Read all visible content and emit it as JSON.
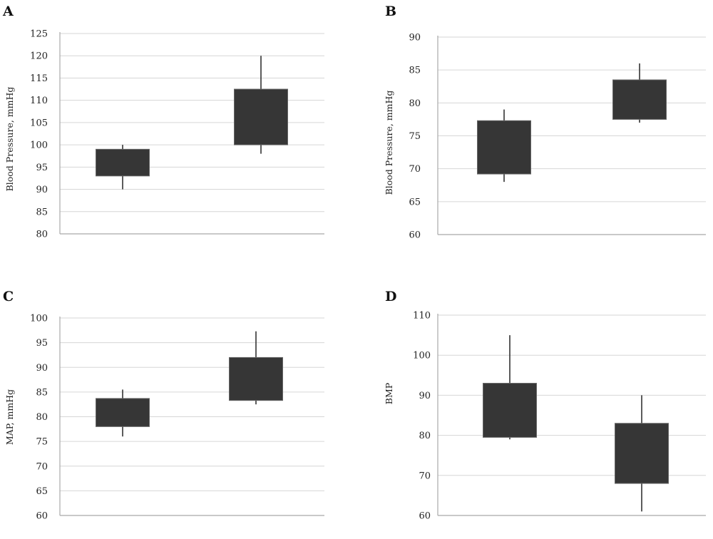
{
  "chart_data": [
    {
      "panel": "A",
      "type": "box",
      "ylabel": "Blood Pressure, mmHg",
      "ylim": [
        80,
        125
      ],
      "yticks": [
        80,
        85,
        90,
        95,
        100,
        105,
        110,
        115,
        120,
        125
      ],
      "grid": true,
      "boxes": [
        {
          "low": 90,
          "q1": 93,
          "q3": 99,
          "high": 100
        },
        {
          "low": 98,
          "q1": 100,
          "q3": 112.5,
          "high": 120
        }
      ]
    },
    {
      "panel": "B",
      "type": "box",
      "ylabel": "Blood Pressure, mmHg",
      "ylim": [
        60,
        90
      ],
      "yticks": [
        60,
        65,
        70,
        75,
        80,
        85,
        90
      ],
      "grid": true,
      "boxes": [
        {
          "low": 68,
          "q1": 69.2,
          "q3": 77.3,
          "high": 79
        },
        {
          "low": 77,
          "q1": 77.5,
          "q3": 83.5,
          "high": 86
        }
      ]
    },
    {
      "panel": "C",
      "type": "box",
      "ylabel": "MAP, mmHg",
      "ylim": [
        60,
        100
      ],
      "yticks": [
        60,
        65,
        70,
        75,
        80,
        85,
        90,
        95,
        100
      ],
      "grid": true,
      "boxes": [
        {
          "low": 76,
          "q1": 78,
          "q3": 83.7,
          "high": 85.5
        },
        {
          "low": 82.5,
          "q1": 83.3,
          "q3": 92,
          "high": 97.3
        }
      ]
    },
    {
      "panel": "D",
      "type": "box",
      "ylabel": "BMP",
      "ylim": [
        60,
        110
      ],
      "yticks": [
        60,
        70,
        80,
        90,
        100,
        110
      ],
      "grid": true,
      "boxes": [
        {
          "low": 79,
          "q1": 79.5,
          "q3": 93,
          "high": 105
        },
        {
          "low": 61,
          "q1": 68,
          "q3": 83,
          "high": 90
        }
      ]
    }
  ]
}
